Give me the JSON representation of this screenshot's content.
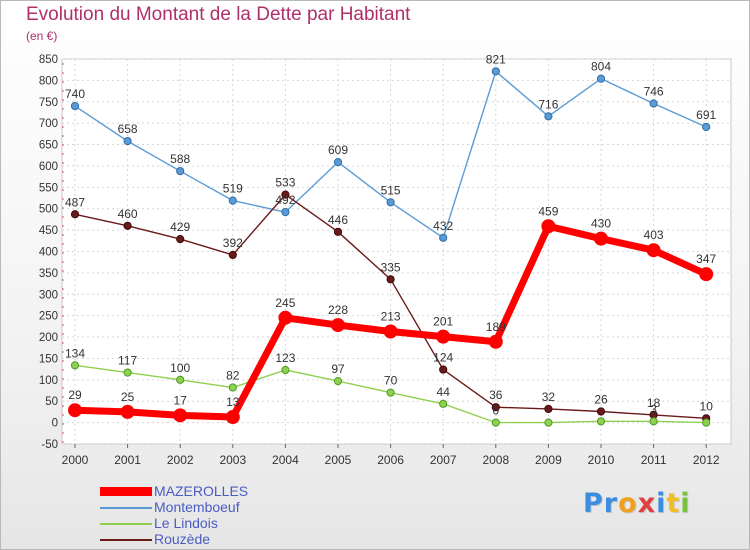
{
  "header": {
    "title": "Evolution du Montant de la Dette par Habitant",
    "subtitle": "(en €)"
  },
  "logo": {
    "letters": [
      "P",
      "r",
      "o",
      "x",
      "i",
      "t",
      "i"
    ],
    "colors": [
      "#3b8de0",
      "#3b8de0",
      "#f0a020",
      "#e04040",
      "#3b8de0",
      "#f0c020",
      "#7ac043"
    ]
  },
  "chart_data": {
    "type": "line",
    "title": "Evolution du Montant de la Dette par Habitant",
    "subtitle": "(en €)",
    "xlabel": "",
    "ylabel": "",
    "x": [
      "2000",
      "2001",
      "2002",
      "2003",
      "2004",
      "2005",
      "2006",
      "2007",
      "2008",
      "2009",
      "2010",
      "2011",
      "2012"
    ],
    "ylim": [
      -50,
      850
    ],
    "yticks": [
      -50,
      0,
      50,
      100,
      150,
      200,
      250,
      300,
      350,
      400,
      450,
      500,
      550,
      600,
      650,
      700,
      750,
      800,
      850
    ],
    "grid": true,
    "legend_position": "bottom-left",
    "series": [
      {
        "name": "MAZEROLLES",
        "color": "#ff0000",
        "values": [
          29,
          25,
          17,
          13,
          245,
          228,
          213,
          201,
          189,
          459,
          430,
          403,
          347
        ],
        "labels": [
          "29",
          "25",
          "17",
          "13",
          "245",
          "228",
          "213",
          "201",
          "189",
          "459",
          "430",
          "403",
          "347"
        ]
      },
      {
        "name": "Montemboeuf",
        "color": "#5b9bd5",
        "values": [
          740,
          658,
          588,
          519,
          492,
          609,
          515,
          432,
          821,
          716,
          804,
          746,
          691
        ],
        "labels": [
          "740",
          "658",
          "588",
          "519",
          "492",
          "609",
          "515",
          "432",
          "821",
          "716",
          "804",
          "746",
          "691"
        ]
      },
      {
        "name": "Le Lindois",
        "color": "#8fd14f",
        "values": [
          134,
          117,
          100,
          82,
          123,
          97,
          70,
          44,
          0,
          0,
          3,
          3,
          0
        ],
        "labels": [
          "134",
          "117",
          "100",
          "82",
          "123",
          "97",
          "70",
          "44",
          "0",
          "",
          "",
          "3",
          ""
        ]
      },
      {
        "name": "Rouzède",
        "color": "#6b1a1a",
        "values": [
          487,
          460,
          429,
          392,
          533,
          446,
          335,
          124,
          36,
          32,
          26,
          18,
          10
        ],
        "labels": [
          "487",
          "460",
          "429",
          "392",
          "533",
          "446",
          "335",
          "124",
          "36",
          "32",
          "26",
          "18",
          "10"
        ]
      }
    ]
  }
}
